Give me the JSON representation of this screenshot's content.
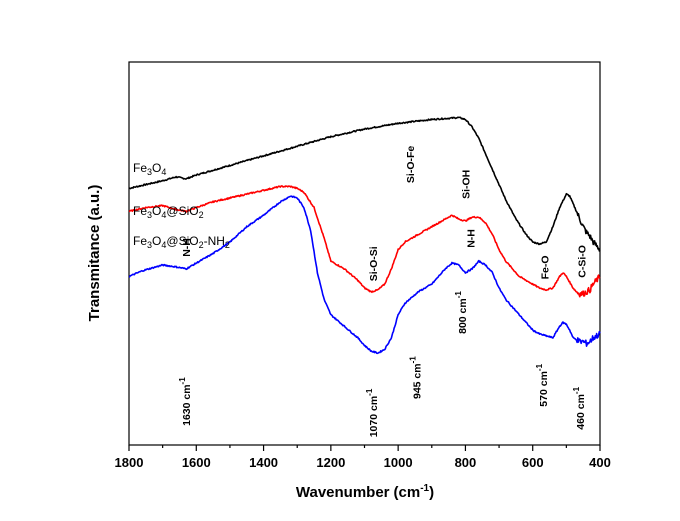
{
  "chart_data": {
    "type": "line",
    "title": "",
    "xlabel": "Wavenumber",
    "xlabel_unit_base": "(cm",
    "xlabel_unit_sup": "-1",
    "xlabel_unit_end": ")",
    "ylabel": "Transmitance (a.u.)",
    "xlim": [
      1800,
      400
    ],
    "x_reversed": true,
    "ylim": [
      0,
      100
    ],
    "y_ticks_shown": false,
    "grid": false,
    "x_ticks": [
      "1800",
      "1600",
      "1400",
      "1200",
      "1000",
      "800",
      "600",
      "400"
    ],
    "series": [
      {
        "name": "Fe3O4",
        "name_parts": [
          [
            "Fe",
            ""
          ],
          [
            "3",
            "sub"
          ],
          [
            "O",
            ""
          ],
          [
            "4",
            "sub"
          ]
        ],
        "color": "#000000",
        "x": [
          1800,
          1700,
          1660,
          1630,
          1600,
          1500,
          1400,
          1300,
          1200,
          1100,
          1000,
          900,
          850,
          820,
          800,
          780,
          760,
          740,
          720,
          700,
          680,
          650,
          620,
          600,
          580,
          560,
          540,
          520,
          500,
          490,
          480,
          470,
          460,
          450,
          440,
          430,
          420,
          410,
          400
        ],
        "y": [
          67,
          69,
          70,
          69.5,
          70.5,
          73,
          75.5,
          78,
          80.5,
          82.5,
          84,
          85,
          85.3,
          85.5,
          85,
          83,
          80,
          76,
          72,
          68,
          64,
          59,
          55,
          53,
          52.5,
          53,
          57,
          62,
          65.5,
          65,
          63,
          61,
          59,
          57,
          55.5,
          54.5,
          53,
          52,
          51
        ]
      },
      {
        "name": "Fe3O4@SiO2",
        "name_parts": [
          [
            "Fe",
            ""
          ],
          [
            "3",
            "sub"
          ],
          [
            "O",
            ""
          ],
          [
            "4",
            "sub"
          ],
          [
            "@SiO",
            ""
          ],
          [
            "2",
            "sub"
          ]
        ],
        "color": "#ff0000",
        "x": [
          1800,
          1750,
          1700,
          1660,
          1630,
          1600,
          1550,
          1500,
          1450,
          1400,
          1350,
          1320,
          1300,
          1280,
          1250,
          1220,
          1200,
          1160,
          1120,
          1100,
          1080,
          1060,
          1040,
          1020,
          1000,
          980,
          960,
          940,
          920,
          900,
          880,
          860,
          840,
          820,
          800,
          780,
          760,
          740,
          720,
          700,
          680,
          660,
          640,
          620,
          600,
          580,
          560,
          540,
          520,
          510,
          500,
          490,
          480,
          470,
          460,
          450,
          440,
          430,
          420,
          410,
          400
        ],
        "y": [
          61,
          62,
          62.5,
          61.5,
          61,
          62,
          63.5,
          64.5,
          65.5,
          66.5,
          67.5,
          67.5,
          67,
          66,
          62,
          54,
          48,
          46,
          43,
          41,
          40,
          40.5,
          42,
          46,
          51,
          53,
          54,
          55,
          56,
          57,
          58,
          59,
          60,
          59,
          58.5,
          59.5,
          59.5,
          58,
          55,
          51,
          48,
          46,
          44,
          43,
          42,
          41,
          40.5,
          41,
          44,
          45,
          44,
          42.5,
          41,
          40,
          39.5,
          39.5,
          40,
          40.5,
          42,
          43,
          44
        ]
      },
      {
        "name": "Fe3O4@SiO2-NH2",
        "name_parts": [
          [
            "Fe",
            ""
          ],
          [
            "3",
            "sub"
          ],
          [
            "O",
            ""
          ],
          [
            "4",
            "sub"
          ],
          [
            "@SiO",
            ""
          ],
          [
            "2",
            "sub"
          ],
          [
            "-NH",
            ""
          ],
          [
            "2",
            "sub"
          ]
        ],
        "color": "#0000ff",
        "x": [
          1800,
          1760,
          1720,
          1700,
          1660,
          1630,
          1600,
          1550,
          1500,
          1450,
          1400,
          1350,
          1320,
          1300,
          1280,
          1260,
          1240,
          1220,
          1200,
          1160,
          1120,
          1100,
          1080,
          1060,
          1040,
          1020,
          1000,
          980,
          960,
          940,
          920,
          900,
          880,
          860,
          840,
          820,
          800,
          780,
          760,
          740,
          720,
          700,
          680,
          660,
          640,
          620,
          600,
          580,
          560,
          540,
          520,
          510,
          500,
          490,
          480,
          470,
          460,
          450,
          440,
          430,
          420,
          410,
          400
        ],
        "y": [
          44,
          45.5,
          46.5,
          47,
          46.5,
          46,
          47.5,
          50,
          53,
          57,
          60,
          63.5,
          65,
          64.5,
          62,
          56,
          45,
          38,
          34,
          31,
          28,
          26,
          24.5,
          24,
          25,
          28,
          34,
          37,
          38.5,
          40,
          41,
          42,
          44,
          46,
          47.5,
          47,
          45,
          46,
          48,
          47,
          45,
          41,
          38,
          36,
          34,
          32,
          30,
          29,
          28.5,
          28,
          31,
          32,
          31.5,
          30,
          28,
          27.5,
          27,
          27,
          26.5,
          27,
          28,
          28.5,
          29
        ]
      }
    ],
    "annotations": [
      {
        "text": "N-H",
        "x": 1630,
        "series": 2,
        "dy": -12,
        "rotated": true
      },
      {
        "text": "Si-O-Si",
        "x": 1075,
        "series": 1,
        "dy": -10,
        "rotated": true
      },
      {
        "text": "Si-O-Fe",
        "x": 965,
        "series": 1,
        "dy": -56,
        "rotated": true
      },
      {
        "text": "Si-OH",
        "x": 800,
        "series": 1,
        "dy": -22,
        "rotated": true
      },
      {
        "text": "N-H",
        "x": 785,
        "series": 2,
        "dy": -22,
        "rotated": true
      },
      {
        "text": "Fe-O",
        "x": 565,
        "series": 1,
        "dy": -10,
        "rotated": true
      },
      {
        "text": "C-Si-O",
        "x": 455,
        "series": 1,
        "dy": -16,
        "rotated": true
      }
    ],
    "wavenumber_labels": [
      {
        "value": "1630",
        "unit": "cm",
        "sup": "-1",
        "x": 1630,
        "y": 5
      },
      {
        "value": "1070",
        "unit": "cm",
        "sup": "-1",
        "x": 1075,
        "y": 2
      },
      {
        "value": "945",
        "unit": "cm",
        "sup": "-1",
        "x": 945,
        "y": 12
      },
      {
        "value": "800",
        "unit": "cm",
        "sup": "-1",
        "x": 810,
        "y": 29
      },
      {
        "value": "570",
        "unit": "cm",
        "sup": "-1",
        "x": 570,
        "y": 10
      },
      {
        "value": "460",
        "unit": "cm",
        "sup": "-1",
        "x": 460,
        "y": 4
      }
    ]
  }
}
